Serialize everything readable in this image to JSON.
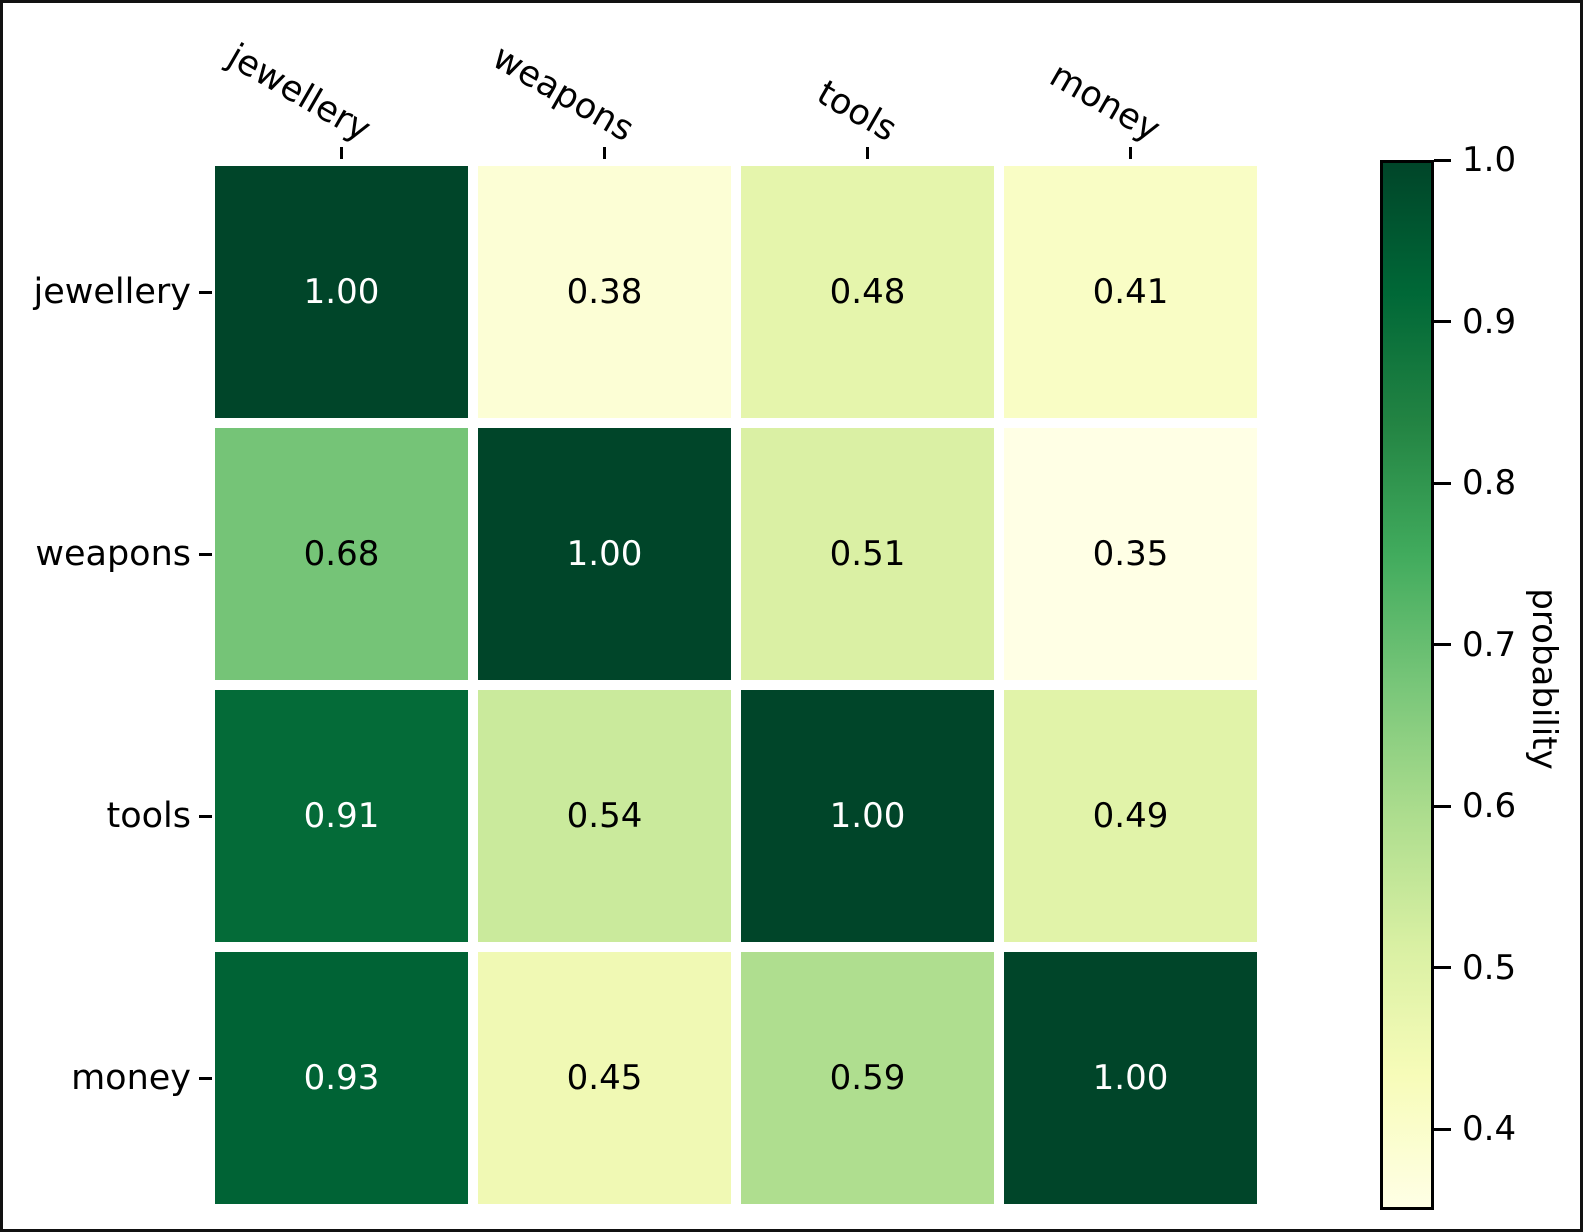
{
  "chart_data": {
    "type": "heatmap",
    "title": "",
    "xlabel": "",
    "ylabel": "",
    "categories_x": [
      "jewellery",
      "weapons",
      "tools",
      "money"
    ],
    "categories_y": [
      "jewellery",
      "weapons",
      "tools",
      "money"
    ],
    "matrix": [
      [
        1.0,
        0.38,
        0.48,
        0.41
      ],
      [
        0.68,
        1.0,
        0.51,
        0.35
      ],
      [
        0.91,
        0.54,
        1.0,
        0.49
      ],
      [
        0.93,
        0.45,
        0.59,
        1.0
      ]
    ],
    "annotation_decimals": 2,
    "grid": false,
    "colorbar": {
      "label": "probability",
      "tick_labels": [
        "1.0",
        "0.9",
        "0.8",
        "0.7",
        "0.6",
        "0.5",
        "0.4"
      ],
      "tick_values": [
        1.0,
        0.9,
        0.8,
        0.7,
        0.6,
        0.5,
        0.4
      ],
      "vmin": 0.35,
      "vmax": 1.0,
      "position": "right"
    },
    "colormap": {
      "name": "YlGn",
      "stops": [
        "#ffffe5",
        "#f7fcb9",
        "#d9f0a3",
        "#addd8e",
        "#78c679",
        "#41ab5d",
        "#238443",
        "#006837",
        "#004529"
      ]
    },
    "annotation_colors": {
      "on_light": "#000000",
      "on_dark": "#ffffff"
    },
    "tick_color": "#000000",
    "frame_color": "#111111"
  }
}
